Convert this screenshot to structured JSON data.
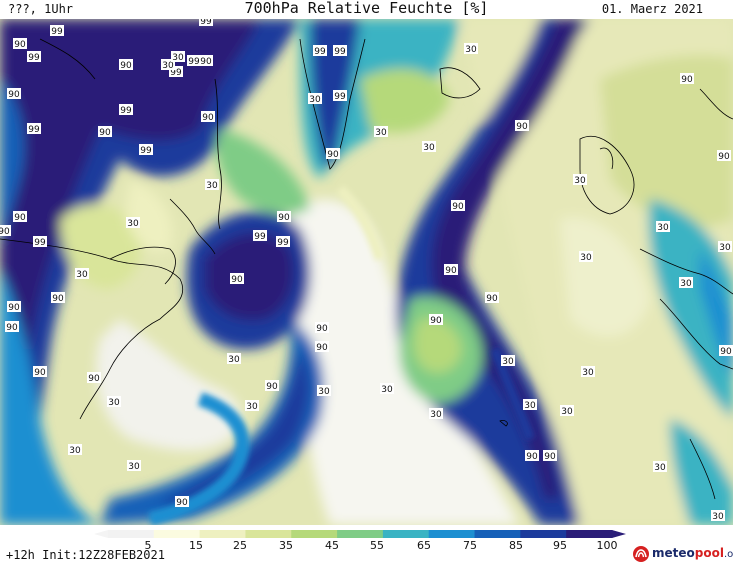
{
  "header": {
    "left": "???, 1Uhr",
    "title": "700hPa Relative Feuchte [%]",
    "date": "01. Maerz 2021"
  },
  "footer": {
    "init": "+12h Init:12Z28FEB2021",
    "brand_main": "meteo",
    "brand_accent": "pool",
    "brand_suffix": ".org"
  },
  "colorbar": {
    "ticks": [
      "5",
      "15",
      "25",
      "35",
      "45",
      "55",
      "65",
      "75",
      "85",
      "95",
      "100"
    ],
    "colors": [
      "#f2f2f2",
      "#fbfbe0",
      "#eef0c0",
      "#d9e59a",
      "#b5d97a",
      "#7fcc86",
      "#3ab3c3",
      "#1d8fd1",
      "#1660b8",
      "#1c3b9c",
      "#2a1d78"
    ]
  },
  "map_labels": [
    {
      "v": "99"
    },
    {
      "v": "99"
    },
    {
      "v": "90"
    },
    {
      "v": "99"
    },
    {
      "v": "90"
    },
    {
      "v": "99"
    },
    {
      "v": "99"
    },
    {
      "v": "90"
    },
    {
      "v": "90"
    },
    {
      "v": "90"
    },
    {
      "v": "99"
    },
    {
      "v": "30"
    },
    {
      "v": "99"
    },
    {
      "v": "99"
    },
    {
      "v": "90"
    },
    {
      "v": "99"
    },
    {
      "v": "99"
    },
    {
      "v": "90"
    },
    {
      "v": "99"
    },
    {
      "v": "30"
    },
    {
      "v": "90"
    },
    {
      "v": "30"
    },
    {
      "v": "30"
    },
    {
      "v": "90"
    },
    {
      "v": "30"
    },
    {
      "v": "90"
    },
    {
      "v": "30"
    },
    {
      "v": "30"
    },
    {
      "v": "90"
    },
    {
      "v": "90"
    },
    {
      "v": "99"
    },
    {
      "v": "99"
    },
    {
      "v": "30"
    },
    {
      "v": "90"
    },
    {
      "v": "90"
    },
    {
      "v": "30"
    },
    {
      "v": "90"
    },
    {
      "v": "90"
    },
    {
      "v": "99"
    },
    {
      "v": "90"
    },
    {
      "v": "90"
    },
    {
      "v": "30"
    },
    {
      "v": "30"
    },
    {
      "v": "90"
    },
    {
      "v": "90"
    },
    {
      "v": "90"
    },
    {
      "v": "30"
    },
    {
      "v": "90"
    },
    {
      "v": "30"
    },
    {
      "v": "90"
    },
    {
      "v": "30"
    },
    {
      "v": "30"
    },
    {
      "v": "90"
    },
    {
      "v": "30"
    },
    {
      "v": "30"
    },
    {
      "v": "30"
    },
    {
      "v": "30"
    },
    {
      "v": "30"
    },
    {
      "v": "30"
    },
    {
      "v": "30"
    },
    {
      "v": "90"
    },
    {
      "v": "90"
    },
    {
      "v": "30"
    },
    {
      "v": "90"
    },
    {
      "v": "90"
    },
    {
      "v": "30"
    },
    {
      "v": "30"
    },
    {
      "v": "90"
    },
    {
      "v": "90"
    },
    {
      "v": "30"
    },
    {
      "v": "30"
    },
    {
      "v": "30"
    }
  ]
}
